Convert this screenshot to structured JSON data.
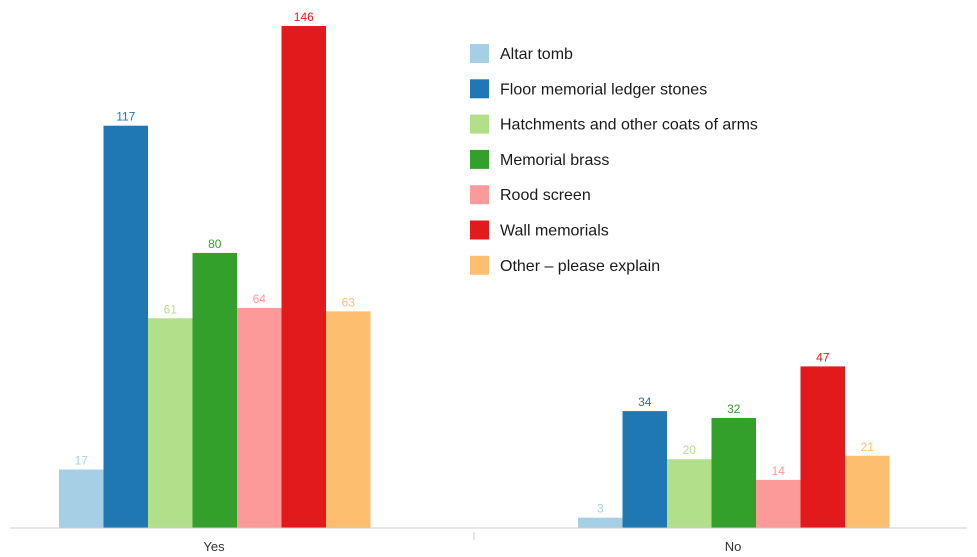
{
  "chart_data": {
    "type": "bar",
    "title": "",
    "xlabel": "",
    "ylabel": "",
    "ylim": [
      0,
      146
    ],
    "grid": false,
    "legend_position": "top-right",
    "categories": [
      "Yes",
      "No"
    ],
    "series": [
      {
        "name": "Altar tomb",
        "color": "#a6cfe5",
        "values": [
          17,
          3
        ]
      },
      {
        "name": "Floor memorial ledger stones",
        "color": "#1f78b4",
        "values": [
          117,
          34
        ]
      },
      {
        "name": "Hatchments and other coats of arms",
        "color": "#b2df8a",
        "values": [
          61,
          20
        ]
      },
      {
        "name": "Memorial brass",
        "color": "#33a02c",
        "values": [
          80,
          32
        ]
      },
      {
        "name": "Rood screen",
        "color": "#fb9a99",
        "values": [
          64,
          14
        ]
      },
      {
        "name": "Wall memorials",
        "color": "#e31a1c",
        "values": [
          146,
          47
        ]
      },
      {
        "name": "Other – please explain",
        "color": "#fdbf6f",
        "values": [
          63,
          21
        ]
      }
    ]
  }
}
